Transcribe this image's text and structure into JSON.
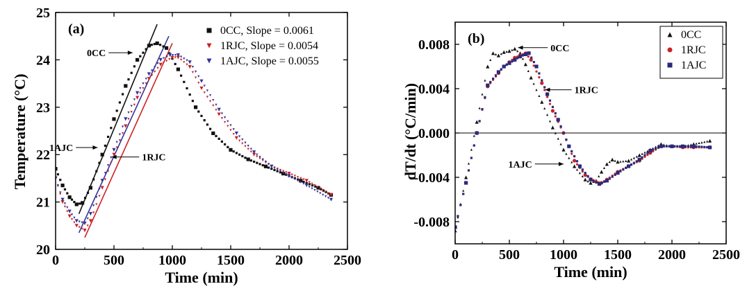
{
  "chart_data": [
    {
      "type": "scatter",
      "panel_label": "(a)",
      "xlabel": "Time (min)",
      "ylabel": "Temperature (°C)",
      "xlim": [
        0,
        2500
      ],
      "ylim": [
        20,
        25
      ],
      "xticks": [
        "0",
        "500",
        "1000",
        "1500",
        "2000",
        "2500"
      ],
      "yticks": [
        "20",
        "21",
        "22",
        "23",
        "24",
        "25"
      ],
      "legend_position": "top-right",
      "series": [
        {
          "name": "0CC, Slope = 0.0061",
          "marker": "square",
          "color": "#111111",
          "x": [
            0,
            60,
            120,
            180,
            230,
            300,
            400,
            500,
            600,
            700,
            800,
            870,
            950,
            1050,
            1200,
            1350,
            1500,
            1650,
            1800,
            1950,
            2100,
            2250,
            2360
          ],
          "y": [
            21.7,
            21.35,
            21.1,
            20.95,
            20.98,
            21.3,
            22.0,
            22.75,
            23.45,
            24.0,
            24.3,
            24.35,
            24.25,
            23.8,
            23.0,
            22.45,
            22.1,
            21.9,
            21.75,
            21.6,
            21.45,
            21.3,
            21.15
          ]
        },
        {
          "name": "1RJC, Slope = 0.0054",
          "marker": "triangle-down",
          "color": "#cc2222",
          "x": [
            0,
            60,
            120,
            180,
            250,
            300,
            400,
            500,
            600,
            700,
            800,
            900,
            1000,
            1050,
            1150,
            1250,
            1400,
            1550,
            1700,
            1850,
            2000,
            2150,
            2360
          ],
          "y": [
            21.5,
            21.0,
            20.7,
            20.5,
            20.4,
            20.6,
            21.3,
            22.0,
            22.6,
            23.2,
            23.6,
            23.9,
            24.05,
            24.05,
            23.85,
            23.4,
            22.85,
            22.35,
            22.0,
            21.75,
            21.6,
            21.45,
            21.15
          ]
        },
        {
          "name": "1AJC, Slope = 0.0055",
          "marker": "triangle-down",
          "color": "#333399",
          "x": [
            0,
            60,
            120,
            180,
            250,
            300,
            400,
            500,
            600,
            700,
            800,
            900,
            980,
            1050,
            1150,
            1250,
            1400,
            1550,
            1700,
            1850,
            2000,
            2150,
            2360
          ],
          "y": [
            21.5,
            21.05,
            20.8,
            20.6,
            20.55,
            20.75,
            21.45,
            22.1,
            22.75,
            23.3,
            23.7,
            24.0,
            24.1,
            24.1,
            23.95,
            23.55,
            22.95,
            22.45,
            22.05,
            21.75,
            21.55,
            21.35,
            21.05
          ]
        }
      ],
      "fit_lines": [
        {
          "name": "0CC",
          "x": [
            200,
            870
          ],
          "y": [
            20.75,
            24.75
          ],
          "color": "#111111"
        },
        {
          "name": "1RJC",
          "x": [
            250,
            1000
          ],
          "y": [
            20.25,
            24.35
          ],
          "color": "#cc2222"
        },
        {
          "name": "1AJC",
          "x": [
            200,
            970
          ],
          "y": [
            20.35,
            24.5
          ],
          "color": "#333399"
        }
      ],
      "annotations": [
        {
          "text": "0CC",
          "at": [
            430,
            24.15
          ],
          "arrow_to": [
            660,
            24.15
          ]
        },
        {
          "text": "1AJC",
          "at": [
            150,
            22.15
          ],
          "arrow_to": [
            360,
            22.15
          ]
        },
        {
          "text": "1RJC",
          "at": [
            740,
            21.95
          ],
          "arrow_to": [
            480,
            21.95
          ]
        }
      ]
    },
    {
      "type": "scatter",
      "panel_label": "(b)",
      "xlabel": "Time (min)",
      "ylabel": "dT/dt (°C/min)",
      "xlim": [
        0,
        2500
      ],
      "ylim": [
        -0.01,
        0.01
      ],
      "xticks": [
        "0",
        "500",
        "1000",
        "1500",
        "2000",
        "2500"
      ],
      "yticks": [
        "0.008",
        "0.004",
        "0.000",
        "-0.004",
        "-0.008"
      ],
      "ytick_values": [
        0.008,
        0.004,
        0.0,
        -0.004,
        -0.008
      ],
      "zero_line": true,
      "legend_position": "top-right",
      "series": [
        {
          "name": "0CC",
          "marker": "triangle-up",
          "color": "#111111",
          "x": [
            0,
            100,
            200,
            300,
            350,
            400,
            450,
            500,
            550,
            600,
            650,
            700,
            800,
            900,
            1000,
            1100,
            1200,
            1250,
            1300,
            1350,
            1400,
            1450,
            1500,
            1600,
            1700,
            1800,
            1900,
            2000,
            2100,
            2200,
            2350
          ],
          "y": [
            -0.0088,
            -0.004,
            0.001,
            0.006,
            0.0072,
            0.007,
            0.0073,
            0.0074,
            0.0076,
            0.0072,
            0.0062,
            0.005,
            0.0028,
            0.0005,
            -0.0015,
            -0.003,
            -0.0042,
            -0.0045,
            -0.0043,
            -0.0035,
            -0.0028,
            -0.0024,
            -0.0026,
            -0.0025,
            -0.002,
            -0.0015,
            -0.001,
            -0.0012,
            -0.0012,
            -0.001,
            -0.0007
          ]
        },
        {
          "name": "1RJC",
          "marker": "circle",
          "color": "#cc2222",
          "x": [
            0,
            100,
            200,
            300,
            400,
            450,
            500,
            550,
            600,
            650,
            700,
            800,
            900,
            1000,
            1100,
            1200,
            1300,
            1350,
            1400,
            1500,
            1600,
            1700,
            1800,
            1900,
            2000,
            2100,
            2200,
            2350
          ],
          "y": [
            -0.0085,
            -0.0045,
            0.0,
            0.0042,
            0.0054,
            0.006,
            0.0064,
            0.0068,
            0.007,
            0.0072,
            0.0066,
            0.0045,
            0.002,
            0.0,
            -0.0025,
            -0.0038,
            -0.0044,
            -0.0045,
            -0.0042,
            -0.0035,
            -0.003,
            -0.0025,
            -0.0018,
            -0.0012,
            -0.0012,
            -0.0013,
            -0.0013,
            -0.0013
          ]
        },
        {
          "name": "1AJC",
          "marker": "square",
          "color": "#2a2a7a",
          "x": [
            0,
            100,
            200,
            300,
            400,
            450,
            500,
            550,
            600,
            650,
            680,
            750,
            850,
            950,
            1050,
            1150,
            1250,
            1330,
            1400,
            1500,
            1600,
            1700,
            1800,
            1900,
            2000,
            2100,
            2200,
            2350
          ],
          "y": [
            -0.0085,
            -0.0045,
            0.0,
            0.0043,
            0.0055,
            0.006,
            0.0063,
            0.0066,
            0.0069,
            0.0071,
            0.0072,
            0.006,
            0.0035,
            0.0012,
            -0.0012,
            -0.003,
            -0.0042,
            -0.0046,
            -0.0043,
            -0.0036,
            -0.003,
            -0.0024,
            -0.0016,
            -0.0012,
            -0.0012,
            -0.0012,
            -0.0012,
            -0.0013
          ]
        }
      ],
      "annotations": [
        {
          "text": "0CC",
          "at": [
            880,
            0.0077
          ],
          "arrow_to": [
            580,
            0.0077
          ]
        },
        {
          "text": "1RJC",
          "at": [
            1100,
            0.0039
          ],
          "arrow_to": [
            830,
            0.0039
          ]
        },
        {
          "text": "1AJC",
          "at": [
            710,
            -0.0028
          ],
          "arrow_to": [
            1000,
            -0.0028
          ]
        }
      ]
    }
  ]
}
